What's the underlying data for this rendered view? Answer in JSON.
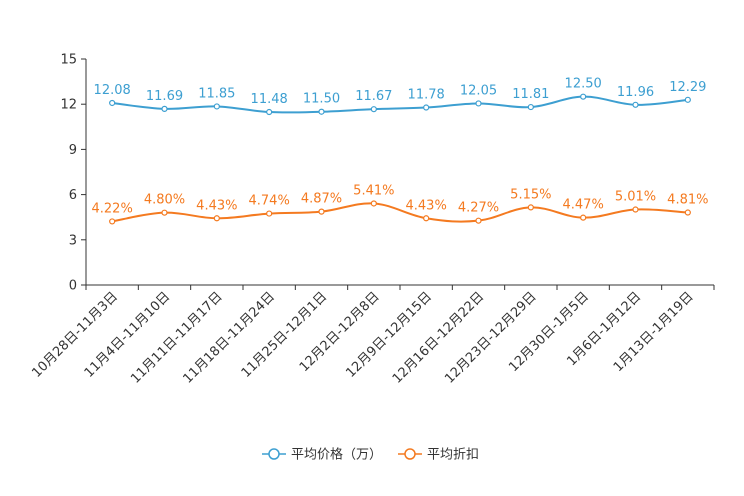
{
  "chart_data": {
    "type": "line",
    "categories": [
      "10月28日-11月3日",
      "11月4日-11月10日",
      "11月11日-11月17日",
      "11月18日-11月24日",
      "11月25日-12月1日",
      "12月2日-12月8日",
      "12月9日-12月15日",
      "12月16日-12月22日",
      "12月23日-12月29日",
      "12月30日-1月5日",
      "1月6日-1月12日",
      "1月13日-1月19日"
    ],
    "ylim": [
      0,
      15
    ],
    "yticks": [
      "0",
      "3",
      "6",
      "9",
      "12",
      "15"
    ],
    "series": [
      {
        "name": "平均价格（万）",
        "color": "#3d9fd1",
        "values": [
          12.08,
          11.69,
          11.85,
          11.48,
          11.5,
          11.67,
          11.78,
          12.05,
          11.81,
          12.5,
          11.96,
          12.29
        ],
        "labels": [
          "12.08",
          "11.69",
          "11.85",
          "11.48",
          "11.50",
          "11.67",
          "11.78",
          "12.05",
          "11.81",
          "12.50",
          "11.96",
          "12.29"
        ]
      },
      {
        "name": "平均折扣",
        "color": "#f47a20",
        "values": [
          4.22,
          4.8,
          4.43,
          4.74,
          4.87,
          5.41,
          4.43,
          4.27,
          5.15,
          4.47,
          5.01,
          4.81
        ],
        "labels": [
          "4.22%",
          "4.80%",
          "4.43%",
          "4.74%",
          "4.87%",
          "5.41%",
          "4.43%",
          "4.27%",
          "5.15%",
          "4.47%",
          "5.01%",
          "4.81%"
        ]
      }
    ],
    "legend_position": "bottom-center"
  }
}
